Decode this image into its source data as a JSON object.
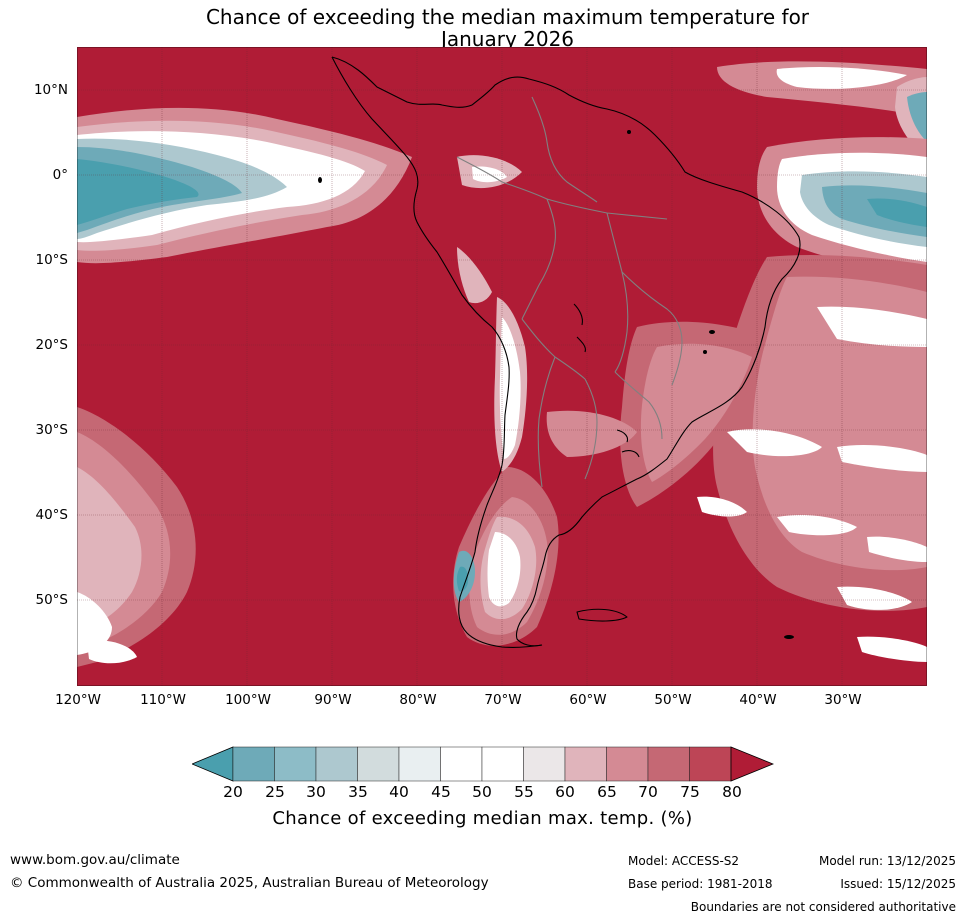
{
  "title": {
    "line1": "Chance of exceeding the median maximum temperature for",
    "line2": "January 2026"
  },
  "axes": {
    "lat_labels": [
      "10°N",
      "0°",
      "10°S",
      "20°S",
      "30°S",
      "40°S",
      "50°S"
    ],
    "lon_labels": [
      "120°W",
      "110°W",
      "100°W",
      "90°W",
      "80°W",
      "70°W",
      "60°W",
      "50°W",
      "40°W",
      "30°W"
    ]
  },
  "colorbar": {
    "ticks": [
      "20",
      "25",
      "30",
      "35",
      "40",
      "45",
      "50",
      "55",
      "60",
      "65",
      "70",
      "75",
      "80"
    ],
    "label": "Chance of exceeding median max. temp. (%)",
    "colors": [
      "#4a9fae",
      "#6eaab8",
      "#8dbcc7",
      "#adc8cf",
      "#d2dcdd",
      "#e9eff1",
      "#ffffff",
      "#ffffff",
      "#ebe7e8",
      "#e0b4bb",
      "#d48a94",
      "#c56874",
      "#bd4556",
      "#b01c36"
    ]
  },
  "colors": {
    "high": "#b01c36",
    "low": "#4a9fae",
    "land_border": "#000000",
    "country_border": "#808080"
  },
  "footer": {
    "website": "www.bom.gov.au/climate",
    "copyright": "© Commonwealth of Australia 2025, Australian Bureau of Meteorology",
    "model": "Model: ACCESS-S2",
    "model_run": "Model run: 13/12/2025",
    "base_period": "Base period: 1981-2018",
    "issued": "Issued: 15/12/2025",
    "disclaimer": "Boundaries are not considered authoritative"
  }
}
